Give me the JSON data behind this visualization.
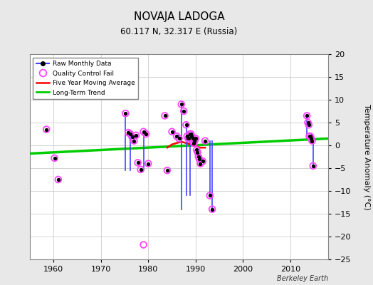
{
  "title": "NOVAJA LADOGA",
  "subtitle": "60.117 N, 32.317 E (Russia)",
  "ylabel": "Temperature Anomaly (°C)",
  "watermark": "Berkeley Earth",
  "xlim": [
    1955,
    2018
  ],
  "ylim": [
    -25,
    20
  ],
  "yticks": [
    -25,
    -20,
    -15,
    -10,
    -5,
    0,
    5,
    10,
    15,
    20
  ],
  "xticks": [
    1960,
    1970,
    1980,
    1990,
    2000,
    2010
  ],
  "plot_bg_color": "#ffffff",
  "fig_bg_color": "#e8e8e8",
  "raw_scatter": [
    [
      1958.5,
      3.5
    ],
    [
      1960.2,
      -2.8
    ],
    [
      1961.0,
      -7.5
    ],
    [
      1975.2,
      7.0
    ],
    [
      1975.8,
      2.8
    ],
    [
      1976.2,
      2.5
    ],
    [
      1976.6,
      1.8
    ],
    [
      1977.0,
      1.0
    ],
    [
      1977.4,
      2.2
    ],
    [
      1977.8,
      -3.8
    ],
    [
      1978.4,
      -5.3
    ],
    [
      1979.0,
      3.0
    ],
    [
      1979.5,
      2.5
    ],
    [
      1980.0,
      -4.0
    ],
    [
      1983.5,
      6.5
    ],
    [
      1984.0,
      -5.5
    ],
    [
      1985.0,
      3.0
    ],
    [
      1986.0,
      2.0
    ],
    [
      1986.5,
      1.5
    ],
    [
      1987.0,
      9.0
    ],
    [
      1987.5,
      7.5
    ],
    [
      1988.0,
      4.5
    ],
    [
      1988.2,
      2.0
    ],
    [
      1988.4,
      1.5
    ],
    [
      1988.6,
      1.5
    ],
    [
      1988.8,
      2.5
    ],
    [
      1989.0,
      2.5
    ],
    [
      1989.2,
      2.0
    ],
    [
      1989.4,
      1.5
    ],
    [
      1989.6,
      0.5
    ],
    [
      1989.8,
      1.0
    ],
    [
      1990.0,
      1.5
    ],
    [
      1990.2,
      -1.0
    ],
    [
      1990.4,
      -1.5
    ],
    [
      1990.6,
      -2.5
    ],
    [
      1990.8,
      -3.0
    ],
    [
      1991.0,
      -4.0
    ],
    [
      1991.5,
      -3.5
    ],
    [
      1992.0,
      1.0
    ],
    [
      1993.0,
      -11.0
    ],
    [
      1993.5,
      -14.0
    ],
    [
      2013.5,
      6.5
    ],
    [
      2013.7,
      5.0
    ],
    [
      2013.9,
      4.5
    ],
    [
      2014.0,
      2.0
    ],
    [
      2014.2,
      2.0
    ],
    [
      2014.4,
      1.5
    ],
    [
      2014.6,
      1.0
    ],
    [
      2014.8,
      -4.5
    ]
  ],
  "qc_fail_scatter": [
    [
      1958.5,
      3.5
    ],
    [
      1960.2,
      -2.8
    ],
    [
      1961.0,
      -7.5
    ],
    [
      1975.2,
      7.0
    ],
    [
      1975.8,
      2.8
    ],
    [
      1976.2,
      2.5
    ],
    [
      1976.6,
      1.8
    ],
    [
      1977.0,
      1.0
    ],
    [
      1977.4,
      2.2
    ],
    [
      1977.8,
      -3.8
    ],
    [
      1978.4,
      -5.3
    ],
    [
      1979.0,
      3.0
    ],
    [
      1979.5,
      2.5
    ],
    [
      1980.0,
      -4.0
    ],
    [
      1983.5,
      6.5
    ],
    [
      1984.0,
      -5.5
    ],
    [
      1979.0,
      -21.8
    ],
    [
      1985.0,
      3.0
    ],
    [
      1986.0,
      2.0
    ],
    [
      1986.5,
      1.5
    ],
    [
      1987.0,
      9.0
    ],
    [
      1987.5,
      7.5
    ],
    [
      1988.0,
      4.5
    ],
    [
      1988.2,
      2.0
    ],
    [
      1988.4,
      1.5
    ],
    [
      1988.6,
      1.5
    ],
    [
      1988.8,
      2.5
    ],
    [
      1989.0,
      2.5
    ],
    [
      1989.2,
      2.0
    ],
    [
      1989.4,
      1.5
    ],
    [
      1989.6,
      0.5
    ],
    [
      1989.8,
      1.0
    ],
    [
      1990.0,
      1.5
    ],
    [
      1990.2,
      -1.0
    ],
    [
      1990.4,
      -1.5
    ],
    [
      1990.6,
      -2.5
    ],
    [
      1990.8,
      -3.0
    ],
    [
      1991.0,
      -4.0
    ],
    [
      1991.5,
      -3.5
    ],
    [
      1992.0,
      1.0
    ],
    [
      1993.0,
      -11.0
    ],
    [
      1993.5,
      -14.0
    ],
    [
      2013.5,
      6.5
    ],
    [
      2013.7,
      5.0
    ],
    [
      2013.9,
      4.5
    ],
    [
      2014.0,
      2.0
    ],
    [
      2014.2,
      2.0
    ],
    [
      2014.4,
      1.5
    ],
    [
      2014.6,
      1.0
    ],
    [
      2014.8,
      -4.5
    ]
  ],
  "raw_lines": [
    [
      [
        1975.2,
        1975.2
      ],
      [
        7.0,
        -5.5
      ]
    ],
    [
      [
        1976.2,
        1976.2
      ],
      [
        2.5,
        -5.5
      ]
    ],
    [
      [
        1979.0,
        1979.0
      ],
      [
        3.0,
        -5.5
      ]
    ],
    [
      [
        1987.0,
        1987.0
      ],
      [
        9.0,
        -14.0
      ]
    ],
    [
      [
        1988.0,
        1988.0
      ],
      [
        4.5,
        -11.0
      ]
    ],
    [
      [
        1988.8,
        1988.8
      ],
      [
        2.5,
        -11.0
      ]
    ],
    [
      [
        1993.0,
        1993.0
      ],
      [
        1.0,
        -11.0
      ]
    ],
    [
      [
        1993.5,
        1993.5
      ],
      [
        1.0,
        -14.0
      ]
    ],
    [
      [
        2013.5,
        2013.5
      ],
      [
        6.5,
        1.5
      ]
    ],
    [
      [
        2014.8,
        2014.8
      ],
      [
        1.0,
        -4.5
      ]
    ]
  ],
  "trend_line_x": [
    1955,
    2018
  ],
  "trend_line_y": [
    -1.8,
    1.5
  ],
  "moving_avg_x": [
    1984,
    1985,
    1986,
    1987,
    1988,
    1989,
    1990,
    1991,
    1992
  ],
  "moving_avg_y": [
    -0.5,
    0.2,
    0.5,
    0.8,
    0.5,
    0.2,
    -0.2,
    -0.5,
    -0.5
  ],
  "raw_line_color": "#4444ff",
  "raw_dot_color": "#000000",
  "qc_color": "#ff44ff",
  "mavg_color": "#ff0000",
  "trend_color": "#00cc00",
  "grid_color": "#cccccc"
}
